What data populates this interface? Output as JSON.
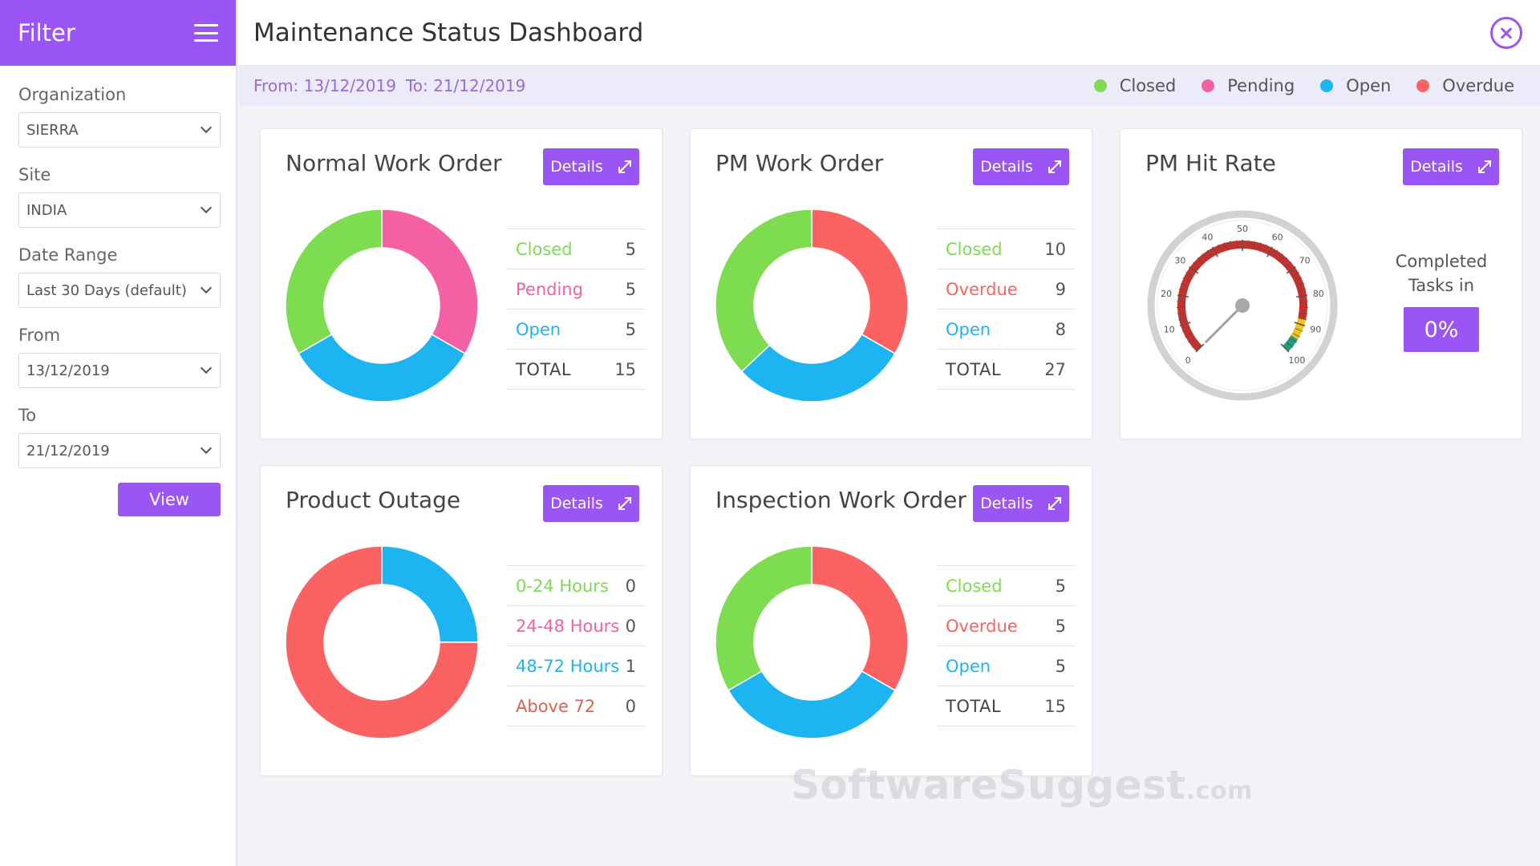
{
  "colors": {
    "accent": "#9b55f5",
    "closed": "#7ddc4f",
    "pending": "#f360a4",
    "open": "#1db4f2",
    "overdue": "#fb6363",
    "above72": "#e0614f"
  },
  "sidebar": {
    "title": "Filter",
    "fields": [
      {
        "label": "Organization",
        "value": "SIERRA"
      },
      {
        "label": "Site",
        "value": "INDIA"
      },
      {
        "label": "Date Range",
        "value": "Last 30 Days (default)"
      },
      {
        "label": "From",
        "value": "13/12/2019"
      },
      {
        "label": "To",
        "value": "21/12/2019"
      }
    ],
    "view_label": "View"
  },
  "header": {
    "title": "Maintenance Status Dashboard"
  },
  "range": {
    "from": "From: 13/12/2019",
    "to": "To: 21/12/2019"
  },
  "legend": [
    {
      "label": "Closed",
      "color": "#7ddc4f"
    },
    {
      "label": "Pending",
      "color": "#f360a4"
    },
    {
      "label": "Open",
      "color": "#1db4f2"
    },
    {
      "label": "Overdue",
      "color": "#fb6363"
    }
  ],
  "details_label": "Details",
  "cards": [
    {
      "title": "Normal Work Order",
      "rows": [
        {
          "label": "Closed",
          "value": "5",
          "color": "#7ddc4f"
        },
        {
          "label": "Pending",
          "value": "5",
          "color": "#f360a4"
        },
        {
          "label": "Open",
          "value": "5",
          "color": "#1db4f2"
        },
        {
          "label": "TOTAL",
          "value": "15",
          "color": "#444444"
        }
      ]
    },
    {
      "title": "PM Work Order",
      "rows": [
        {
          "label": "Closed",
          "value": "10",
          "color": "#7ddc4f"
        },
        {
          "label": "Overdue",
          "value": "9",
          "color": "#fb6363"
        },
        {
          "label": "Open",
          "value": "8",
          "color": "#1db4f2"
        },
        {
          "label": "TOTAL",
          "value": "27",
          "color": "#444444"
        }
      ]
    },
    {
      "title": "PM Hit Rate",
      "completed_label": "Completed Tasks in",
      "completed_value": "0%"
    },
    {
      "title": "Product Outage",
      "rows": [
        {
          "label": "0-24 Hours",
          "value": "0",
          "color": "#7ddc4f"
        },
        {
          "label": "24-48 Hours",
          "value": "0",
          "color": "#f360a4"
        },
        {
          "label": "48-72 Hours",
          "value": "1",
          "color": "#1db4f2"
        },
        {
          "label": "Above 72",
          "value": "0",
          "color": "#e0614f"
        }
      ]
    },
    {
      "title": "Inspection Work Order",
      "rows": [
        {
          "label": "Closed",
          "value": "5",
          "color": "#7ddc4f"
        },
        {
          "label": "Overdue",
          "value": "5",
          "color": "#fb6363"
        },
        {
          "label": "Open",
          "value": "5",
          "color": "#1db4f2"
        },
        {
          "label": "TOTAL",
          "value": "15",
          "color": "#444444"
        }
      ]
    }
  ],
  "donuts": [
    {
      "slices": [
        {
          "value": 5,
          "color": "#f360a4"
        },
        {
          "value": 5,
          "color": "#1db4f2"
        },
        {
          "value": 5,
          "color": "#7ddc4f"
        }
      ]
    },
    {
      "slices": [
        {
          "value": 9,
          "color": "#fb6363"
        },
        {
          "value": 8,
          "color": "#1db4f2"
        },
        {
          "value": 10,
          "color": "#7ddc4f"
        }
      ]
    },
    null,
    {
      "slices": [
        {
          "value": 1,
          "color": "#1db4f2"
        },
        {
          "value": 3,
          "color": "#fb6363"
        }
      ]
    },
    {
      "slices": [
        {
          "value": 5,
          "color": "#fb6363"
        },
        {
          "value": 5,
          "color": "#1db4f2"
        },
        {
          "value": 5,
          "color": "#7ddc4f"
        }
      ]
    }
  ],
  "gauge": {
    "value": 0,
    "min": 0,
    "max": 100,
    "ticks": [
      "0",
      "10",
      "20",
      "30",
      "40",
      "50",
      "60",
      "70",
      "80",
      "90",
      "100"
    ]
  },
  "watermark": {
    "main": "SoftwareSuggest",
    "suffix": ".com"
  }
}
